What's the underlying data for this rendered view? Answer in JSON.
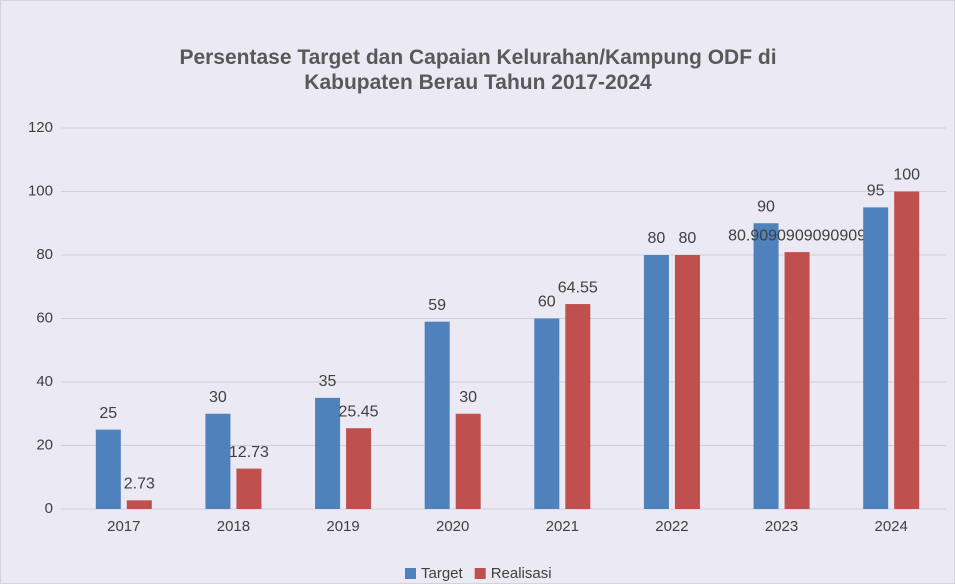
{
  "chart_data": {
    "type": "bar",
    "title": "Persentase Target dan Capaian Kelurahan/Kampung ODF di Kabupaten Berau Tahun 2017-2024",
    "categories": [
      "2017",
      "2018",
      "2019",
      "2020",
      "2021",
      "2022",
      "2023",
      "2024"
    ],
    "series": [
      {
        "name": "Target",
        "color": "#4f81bd",
        "values": [
          25,
          30,
          35,
          59,
          60,
          80,
          90,
          95
        ]
      },
      {
        "name": "Realisasi",
        "color": "#c0504d",
        "values": [
          2.73,
          12.73,
          25.45,
          30,
          64.55,
          80,
          80.9090909090909,
          100
        ]
      }
    ],
    "ylim": [
      0,
      120
    ],
    "yticks": [
      0,
      20,
      40,
      60,
      80,
      100,
      120
    ],
    "grid": true,
    "legend": "bottom"
  }
}
